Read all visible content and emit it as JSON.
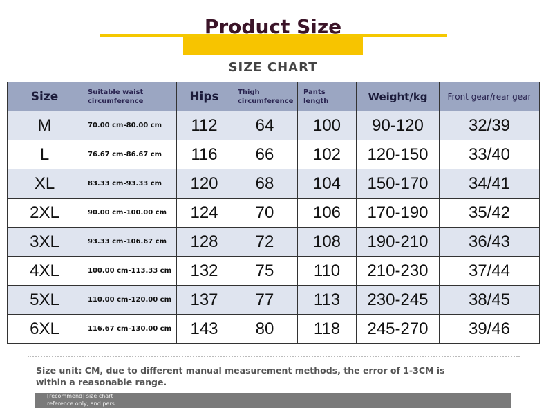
{
  "header": {
    "title": "Product Size",
    "subtitle": "SIZE CHART"
  },
  "table": {
    "columns": [
      "Size",
      "Suitable waist circumference",
      "Hips",
      "Thigh circumference",
      "Pants length",
      "Weight/kg",
      "Front gear/rear gear"
    ],
    "rows": [
      [
        "M",
        "70.00 cm-80.00 cm",
        112,
        64,
        100,
        "90-120",
        "32/39"
      ],
      [
        "L",
        "76.67 cm-86.67 cm",
        116,
        66,
        102,
        "120-150",
        "33/40"
      ],
      [
        "XL",
        "83.33 cm-93.33 cm",
        120,
        68,
        104,
        "150-170",
        "34/41"
      ],
      [
        "2XL",
        "90.00 cm-100.00 cm",
        124,
        70,
        106,
        "170-190",
        "35/42"
      ],
      [
        "3XL",
        "93.33 cm-106.67 cm",
        128,
        72,
        108,
        "190-210",
        "36/43"
      ],
      [
        "4XL",
        "100.00 cm-113.33 cm",
        132,
        75,
        110,
        "210-230",
        "37/44"
      ],
      [
        "5XL",
        "110.00 cm-120.00 cm",
        137,
        77,
        113,
        "230-245",
        "38/45"
      ],
      [
        "6XL",
        "116.67 cm-130.00 cm",
        143,
        80,
        118,
        "245-270",
        "39/46"
      ]
    ]
  },
  "note": "Size unit: CM, due to different manual measurement methods, the error of 1-3CM is within a reasonable range.",
  "footer": [
    "[recommend] size chart",
    "reference only, and pers"
  ]
}
